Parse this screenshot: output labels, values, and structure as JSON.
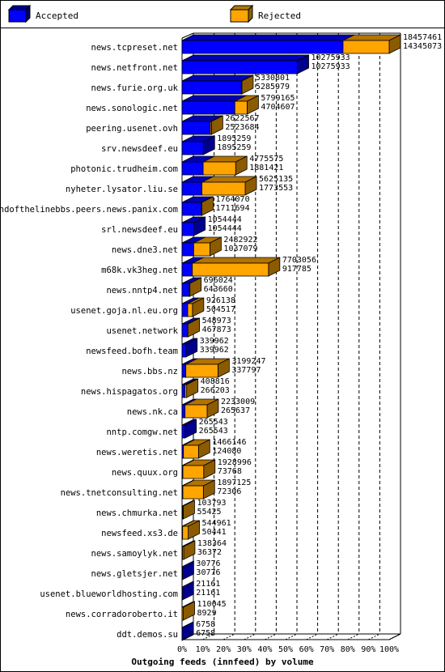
{
  "legend": {
    "accepted_label": "Accepted",
    "rejected_label": "Rejected",
    "accepted_color": "#0000ff",
    "rejected_color": "#ffa500"
  },
  "chart_data": {
    "type": "bar",
    "orientation": "horizontal",
    "xlabel": "Outgoing feeds (innfeed) by volume",
    "x_ticks": [
      "0%",
      "10%",
      "20%",
      "30%",
      "40%",
      "50%",
      "60%",
      "70%",
      "80%",
      "90%",
      "100%"
    ],
    "xlim": [
      0,
      18457461
    ],
    "grid": true,
    "categories": [
      "news.tcpreset.net",
      "news.netfront.net",
      "news.furie.org.uk",
      "news.sonologic.net",
      "peering.usenet.ovh",
      "srv.newsdeef.eu",
      "photonic.trudheim.com",
      "nyheter.lysator.liu.se",
      "endofthelinebbs.peers.news.panix.com",
      "srl.newsdeef.eu",
      "news.dne3.net",
      "m68k.vk3heg.net",
      "news.nntp4.net",
      "usenet.goja.nl.eu.org",
      "usenet.network",
      "newsfeed.bofh.team",
      "news.bbs.nz",
      "news.hispagatos.org",
      "news.nk.ca",
      "nntp.comgw.net",
      "news.weretis.net",
      "news.quux.org",
      "news.tnetconsulting.net",
      "news.chmurka.net",
      "newsfeed.xs3.de",
      "news.samoylyk.net",
      "news.gletsjer.net",
      "usenet.blueworldhosting.com",
      "news.corradoroberto.it",
      "ddt.demos.su"
    ],
    "series": [
      {
        "name": "Accepted",
        "color": "#0000ff",
        "values": [
          14345073,
          10275933,
          5285979,
          4704607,
          2523684,
          1895259,
          1881421,
          1773553,
          1711694,
          1054444,
          1037079,
          917785,
          643660,
          504517,
          467873,
          339962,
          337797,
          266203,
          265637,
          265543,
          124080,
          73768,
          72306,
          55425,
          50441,
          36372,
          30776,
          21161,
          8929,
          6758
        ]
      },
      {
        "name": "Rejected",
        "color": "#ffa500",
        "values": [
          4112388,
          0,
          44822,
          1094558,
          98883,
          0,
          2894154,
          3851582,
          52376,
          0,
          1445843,
          6785271,
          52364,
          421621,
          81100,
          0,
          2861450,
          142613,
          1967372,
          0,
          1342066,
          1855228,
          1824819,
          48368,
          494520,
          101992,
          0,
          0,
          101116,
          0
        ]
      }
    ],
    "labels_top": [
      "18457461",
      "10275933",
      "5330801",
      "5799165",
      "2622567",
      "1895259",
      "4775575",
      "5625135",
      "1764070",
      "1054444",
      "2482922",
      "7703056",
      "696024",
      "926138",
      "548973",
      "339962",
      "3199247",
      "408816",
      "2233009",
      "265543",
      "1466146",
      "1928996",
      "1897125",
      "103793",
      "544961",
      "138364",
      "30776",
      "21161",
      "110045",
      "6758"
    ],
    "labels_bottom": [
      "14345073",
      "10275933",
      "5285979",
      "4704607",
      "2523684",
      "1895259",
      "1881421",
      "1773553",
      "1711694",
      "1054444",
      "1037079",
      "917785",
      "643660",
      "504517",
      "467873",
      "339962",
      "337797",
      "266203",
      "265637",
      "265543",
      "124080",
      "73768",
      "72306",
      "55425",
      "50441",
      "36372",
      "30776",
      "21161",
      "8929",
      "6758"
    ]
  }
}
